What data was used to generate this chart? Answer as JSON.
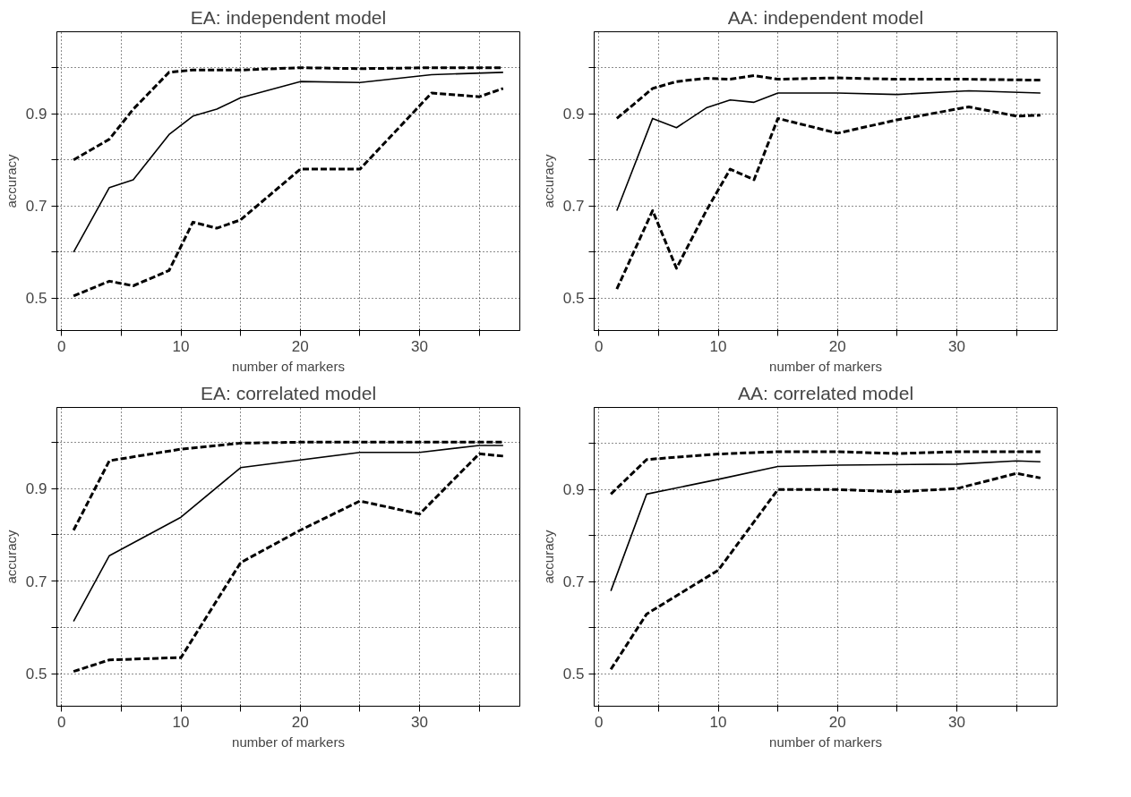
{
  "chart_data": [
    {
      "type": "line",
      "title": "EA: independent model",
      "xlabel": "number of markers",
      "ylabel": "accuracy",
      "xlim": [
        -0.4,
        38.4
      ],
      "ylim": [
        0.43,
        1.078
      ],
      "xticks": [
        0,
        {
          "value": 5,
          "label": null
        },
        10,
        {
          "value": 15,
          "label": null
        },
        20,
        {
          "value": 25,
          "label": null
        },
        30,
        {
          "value": 35,
          "label": null
        }
      ],
      "yticks": [
        0.5,
        {
          "value": 0.6,
          "label": null
        },
        0.7,
        {
          "value": 0.8,
          "label": null
        },
        0.9,
        {
          "value": 1.0,
          "label": null
        }
      ],
      "grid": true,
      "series": [
        {
          "color": "#000000",
          "line_style": "dashed",
          "x": [
            1,
            4,
            6,
            9,
            11,
            13,
            15,
            20,
            25,
            31,
            35,
            37
          ],
          "values": [
            0.8,
            0.845,
            0.91,
            0.99,
            0.995,
            0.995,
            0.995,
            1.0,
            0.998,
            1.0,
            1.0,
            1.0
          ]
        },
        {
          "color": "#000000",
          "line_style": "solid",
          "x": [
            1,
            4,
            6,
            9,
            11,
            13,
            15,
            20,
            25,
            31,
            37
          ],
          "values": [
            0.6,
            0.74,
            0.757,
            0.855,
            0.895,
            0.91,
            0.935,
            0.97,
            0.968,
            0.985,
            0.99
          ]
        },
        {
          "color": "#000000",
          "line_style": "dashed",
          "x": [
            1,
            4,
            6,
            9,
            11,
            13,
            15,
            20,
            25,
            31,
            35,
            37
          ],
          "values": [
            0.505,
            0.537,
            0.527,
            0.56,
            0.665,
            0.652,
            0.67,
            0.78,
            0.78,
            0.945,
            0.937,
            0.955
          ]
        }
      ]
    },
    {
      "type": "line",
      "title": "AA: independent model",
      "xlabel": "number of markers",
      "ylabel": "accuracy",
      "xlim": [
        -0.4,
        38.4
      ],
      "ylim": [
        0.43,
        1.078
      ],
      "xticks": [
        0,
        {
          "value": 5,
          "label": null
        },
        10,
        {
          "value": 15,
          "label": null
        },
        20,
        {
          "value": 25,
          "label": null
        },
        30,
        {
          "value": 35,
          "label": null
        }
      ],
      "yticks": [
        0.5,
        {
          "value": 0.6,
          "label": null
        },
        0.7,
        {
          "value": 0.8,
          "label": null
        },
        0.9,
        {
          "value": 1.0,
          "label": null
        }
      ],
      "grid": true,
      "series": [
        {
          "color": "#000000",
          "line_style": "dashed",
          "x": [
            1.5,
            4.5,
            6.5,
            9,
            11,
            13,
            15,
            20,
            25,
            31,
            37
          ],
          "values": [
            0.89,
            0.955,
            0.97,
            0.977,
            0.975,
            0.983,
            0.975,
            0.978,
            0.975,
            0.975,
            0.973
          ]
        },
        {
          "color": "#000000",
          "line_style": "solid",
          "x": [
            1.5,
            4.5,
            6.5,
            9,
            11,
            13,
            15,
            20,
            25,
            31,
            37
          ],
          "values": [
            0.69,
            0.89,
            0.87,
            0.913,
            0.93,
            0.925,
            0.945,
            0.945,
            0.942,
            0.95,
            0.945
          ]
        },
        {
          "color": "#000000",
          "line_style": "dashed",
          "x": [
            1.5,
            4.5,
            6.5,
            9,
            11,
            13,
            15,
            20,
            25,
            31,
            35,
            37
          ],
          "values": [
            0.52,
            0.69,
            0.565,
            0.69,
            0.78,
            0.757,
            0.89,
            0.858,
            0.887,
            0.915,
            0.895,
            0.897
          ]
        }
      ]
    },
    {
      "type": "line",
      "title": "EA: correlated model",
      "xlabel": "number of markers",
      "ylabel": "accuracy",
      "xlim": [
        -0.4,
        38.4
      ],
      "ylim": [
        0.43,
        1.075
      ],
      "xticks": [
        0,
        {
          "value": 5,
          "label": null
        },
        10,
        {
          "value": 15,
          "label": null
        },
        20,
        {
          "value": 25,
          "label": null
        },
        30,
        {
          "value": 35,
          "label": null
        }
      ],
      "yticks": [
        0.5,
        {
          "value": 0.6,
          "label": null
        },
        0.7,
        {
          "value": 0.8,
          "label": null
        },
        0.9,
        {
          "value": 1.0,
          "label": null
        }
      ],
      "grid": true,
      "series": [
        {
          "color": "#000000",
          "line_style": "dashed",
          "x": [
            1,
            4,
            10,
            15,
            20,
            25,
            30,
            37
          ],
          "values": [
            0.81,
            0.96,
            0.985,
            0.998,
            1.0,
            1.0,
            1.0,
            1.0
          ]
        },
        {
          "color": "#000000",
          "line_style": "solid",
          "x": [
            1,
            4,
            10,
            15,
            25,
            30,
            35,
            37
          ],
          "values": [
            0.613,
            0.755,
            0.838,
            0.945,
            0.978,
            0.978,
            0.993,
            0.993
          ]
        },
        {
          "color": "#000000",
          "line_style": "dashed",
          "x": [
            1,
            4,
            10,
            15,
            20,
            25,
            30,
            35,
            37
          ],
          "values": [
            0.505,
            0.53,
            0.535,
            0.74,
            0.81,
            0.873,
            0.845,
            0.975,
            0.97
          ]
        }
      ]
    },
    {
      "type": "line",
      "title": "AA: correlated model",
      "xlabel": "number of markers",
      "ylabel": "accuracy",
      "xlim": [
        -0.4,
        38.4
      ],
      "ylim": [
        0.43,
        1.078
      ],
      "xticks": [
        0,
        {
          "value": 5,
          "label": null
        },
        10,
        {
          "value": 15,
          "label": null
        },
        20,
        {
          "value": 25,
          "label": null
        },
        30,
        {
          "value": 35,
          "label": null
        }
      ],
      "yticks": [
        0.5,
        {
          "value": 0.6,
          "label": null
        },
        0.7,
        {
          "value": 0.8,
          "label": null
        },
        0.9,
        {
          "value": 1.0,
          "label": null
        }
      ],
      "grid": true,
      "series": [
        {
          "color": "#000000",
          "line_style": "dashed",
          "x": [
            1,
            4,
            10,
            15,
            20,
            25,
            30,
            37
          ],
          "values": [
            0.89,
            0.965,
            0.977,
            0.982,
            0.982,
            0.978,
            0.982,
            0.982
          ]
        },
        {
          "color": "#000000",
          "line_style": "solid",
          "x": [
            1,
            4,
            10,
            15,
            20,
            30,
            35,
            37
          ],
          "values": [
            0.68,
            0.89,
            0.922,
            0.95,
            0.953,
            0.955,
            0.962,
            0.96
          ]
        },
        {
          "color": "#000000",
          "line_style": "dashed",
          "x": [
            1,
            4,
            10,
            15,
            20,
            25,
            30,
            35,
            37
          ],
          "values": [
            0.51,
            0.63,
            0.725,
            0.9,
            0.9,
            0.895,
            0.902,
            0.935,
            0.925
          ]
        }
      ]
    }
  ]
}
